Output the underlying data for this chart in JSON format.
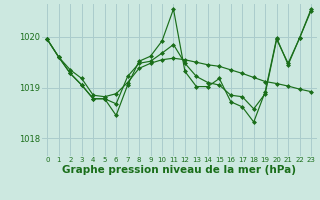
{
  "background_color": "#cce8e0",
  "grid_color": "#aacccc",
  "line_color": "#1a6e1a",
  "marker_color": "#1a6e1a",
  "xlabel": "Graphe pression niveau de la mer (hPa)",
  "xlabel_fontsize": 7.5,
  "ylim": [
    1017.65,
    1020.65
  ],
  "yticks": [
    1018,
    1019,
    1020
  ],
  "xlim": [
    -0.5,
    23.5
  ],
  "xticks": [
    0,
    1,
    2,
    3,
    4,
    5,
    6,
    7,
    8,
    9,
    10,
    11,
    12,
    13,
    14,
    15,
    16,
    17,
    18,
    19,
    20,
    21,
    22,
    23
  ],
  "series1": [
    1019.95,
    1019.6,
    1019.35,
    1019.18,
    1018.85,
    1018.82,
    1018.88,
    1019.1,
    1019.38,
    1019.48,
    1019.55,
    1019.58,
    1019.55,
    1019.5,
    1019.45,
    1019.42,
    1019.35,
    1019.28,
    1019.2,
    1019.12,
    1019.08,
    1019.03,
    1018.97,
    1018.92
  ],
  "series2": [
    1019.95,
    1019.6,
    1019.28,
    1019.05,
    1018.78,
    1018.78,
    1018.68,
    1019.22,
    1019.48,
    1019.52,
    1019.68,
    1019.85,
    1019.48,
    1019.22,
    1019.1,
    1019.05,
    1018.85,
    1018.82,
    1018.58,
    1018.88,
    1019.95,
    1019.48,
    1019.98,
    1020.52
  ],
  "series3": [
    1019.95,
    1019.6,
    1019.28,
    1019.05,
    1018.78,
    1018.78,
    1018.45,
    1019.05,
    1019.52,
    1019.62,
    1019.92,
    1020.55,
    1019.32,
    1019.02,
    1019.02,
    1019.18,
    1018.72,
    1018.62,
    1018.32,
    1018.92,
    1019.98,
    1019.45,
    1019.98,
    1020.55
  ]
}
